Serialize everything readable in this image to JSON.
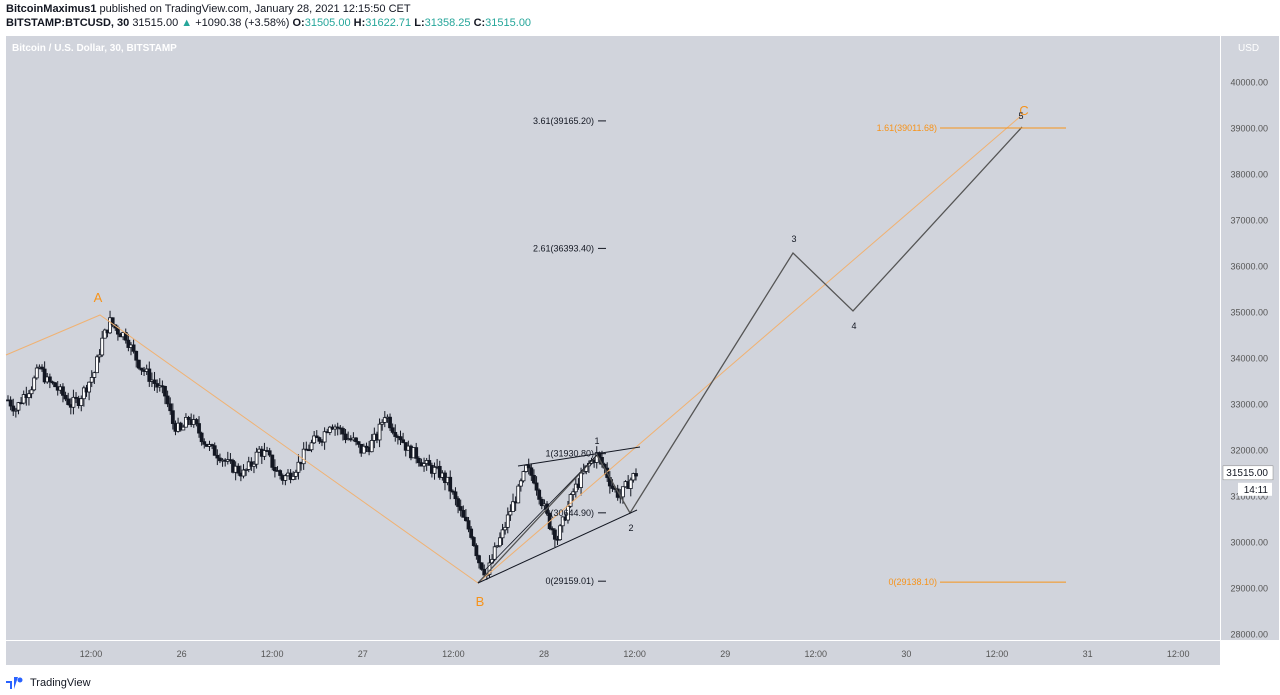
{
  "header": {
    "author": "BitcoinMaximus1",
    "published_text": "published on TradingView.com, January 28, 2021 12:15:50 CET",
    "symbol": "BITSTAMP:BTCUSD, 30",
    "last": "31515.00",
    "change_arrow": "▲",
    "change": "+1090.38 (+3.58%)",
    "o_label": "O:",
    "o_value": "31505.00",
    "h_label": "H:",
    "h_value": "31622.71",
    "l_label": "L:",
    "l_value": "31358.25",
    "c_label": "C:",
    "c_value": "31515.00"
  },
  "footer": {
    "brand": "TradingView",
    "icon": "tradingview-logo-icon"
  },
  "colors": {
    "plot_bg": "#d1d4dc",
    "candle": "#131722",
    "wave": "#555555",
    "orange": "#f7931a",
    "orange_thin": "#f0b273",
    "axis_text": "#555555"
  },
  "chart_data": {
    "type": "candlestick",
    "title": "Bitcoin / U.S. Dollar, 30, BITSTAMP",
    "currency": "USD",
    "ylim": [
      27800,
      40800
    ],
    "yticks": [
      "28000.00",
      "29000.00",
      "30000.00",
      "31000.00",
      "32000.00",
      "33000.00",
      "34000.00",
      "35000.00",
      "36000.00",
      "37000.00",
      "38000.00",
      "39000.00",
      "40000.00"
    ],
    "xticks": [
      "12:00",
      "26",
      "12:00",
      "27",
      "12:00",
      "28",
      "12:00",
      "29",
      "12:00",
      "30",
      "12:00",
      "31",
      "12:00"
    ],
    "last_price_label": "31515.00",
    "countdown_label": "14:11",
    "candles_path_approx": [
      33100,
      32900,
      33200,
      33400,
      33800,
      33500,
      33400,
      33200,
      33000,
      33100,
      33400,
      33700,
      34400,
      34800,
      34600,
      34500,
      34100,
      33800,
      33600,
      33400,
      33200,
      32600,
      32400,
      32700,
      32500,
      32200,
      32000,
      31900,
      31700,
      31600,
      31500,
      31700,
      32000,
      31900,
      31600,
      31400,
      31500,
      31700,
      32000,
      32200,
      32300,
      32600,
      32500,
      32300,
      32200,
      32000,
      32100,
      32300,
      32800,
      32500,
      32300,
      32000,
      31900,
      31700,
      31600,
      31500,
      31300,
      30900,
      30500,
      30200,
      29600,
      29300,
      29800,
      30200,
      30700,
      31100,
      31600,
      31400,
      30900,
      30400,
      30100,
      30600,
      31100,
      31400,
      31700,
      31900,
      31600,
      31200,
      31000,
      31300,
      31500
    ],
    "fib_levels_right": [
      {
        "label": "3.61(39165.20)",
        "value": 39165.2
      },
      {
        "label": "2.61(36393.40)",
        "value": 36393.4
      },
      {
        "label": "1(31930.80)",
        "value": 31930.8
      },
      {
        "label": "0(30644.90)",
        "value": 30644.9
      },
      {
        "label": "0(29159.01)",
        "value": 29159.01
      }
    ],
    "fib_levels_orange": [
      {
        "label": "1.61(39011.68)",
        "value": 39011.68
      },
      {
        "label": "0(29138.10)",
        "value": 29138.1
      }
    ],
    "abc_labels": [
      "A",
      "B",
      "C"
    ],
    "wave_labels": [
      "1",
      "2",
      "3",
      "4",
      "5"
    ]
  }
}
